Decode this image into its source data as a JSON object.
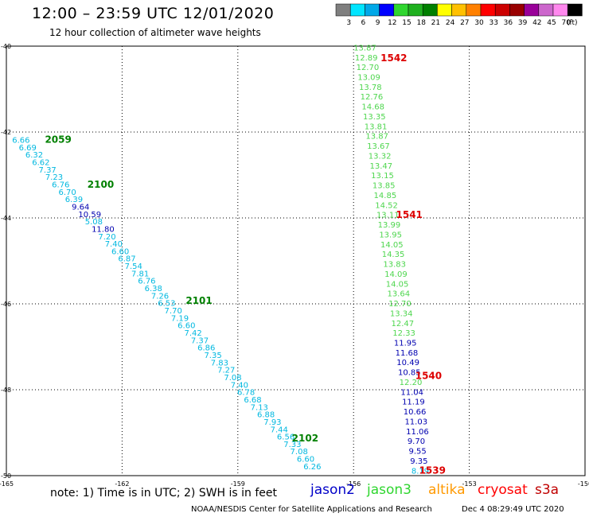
{
  "header": {
    "title": "12:00 – 23:59 UTC 12/01/2020",
    "subtitle": "12 hour collection of altimeter wave heights"
  },
  "legend": {
    "unit": "(ft)",
    "bins": [
      {
        "label": "3",
        "color": "#7f7f7f"
      },
      {
        "label": "6",
        "color": "#00e5ff"
      },
      {
        "label": "9",
        "color": "#00a8e8"
      },
      {
        "label": "12",
        "color": "#0000ff"
      },
      {
        "label": "15",
        "color": "#2fd62f"
      },
      {
        "label": "18",
        "color": "#1fb01f"
      },
      {
        "label": "21",
        "color": "#008000"
      },
      {
        "label": "24",
        "color": "#ffff00"
      },
      {
        "label": "27",
        "color": "#ffc000"
      },
      {
        "label": "30",
        "color": "#ff8000"
      },
      {
        "label": "33",
        "color": "#ff0000"
      },
      {
        "label": "36",
        "color": "#cc0000"
      },
      {
        "label": "39",
        "color": "#990000"
      },
      {
        "label": "42",
        "color": "#990099"
      },
      {
        "label": "45",
        "color": "#cc66cc"
      },
      {
        "label": "70",
        "color": "#ff88ee"
      },
      {
        "label": "",
        "color": "#000000"
      }
    ]
  },
  "axes": {
    "lat_labels": [
      "-40",
      "-42",
      "-44",
      "-46",
      "-48",
      "-50"
    ],
    "lon_labels": [
      "-165",
      "-162",
      "-159",
      "-156",
      "-153",
      "-150"
    ]
  },
  "colors": {
    "jason2": "#0000c8",
    "jason3": "#2fd62f",
    "altika": "#ff9900",
    "cryosat": "#ff0000",
    "s3a": "#c00000",
    "track_labels": "#008000",
    "pass_labels": "#dd0000",
    "cyan": "#00b8e0",
    "cyan2": "#00a0d0",
    "navy": "#0000b0",
    "green": "#4ed64e"
  },
  "track_west": {
    "start_lon": -164.85,
    "start_lat": -42.25,
    "end_lon": -157.3,
    "end_lat": -49.85,
    "values": [
      {
        "v": "6.66",
        "c": "cyan"
      },
      {
        "v": "6.69",
        "c": "cyan"
      },
      {
        "v": "6.32",
        "c": "cyan"
      },
      {
        "v": "6.62",
        "c": "cyan"
      },
      {
        "v": "7.37",
        "c": "cyan"
      },
      {
        "v": "7.23",
        "c": "cyan"
      },
      {
        "v": "6.76",
        "c": "cyan"
      },
      {
        "v": "6.70",
        "c": "cyan"
      },
      {
        "v": "6.39",
        "c": "cyan"
      },
      {
        "v": "9.64",
        "c": "navy"
      },
      {
        "v": "10.59",
        "c": "navy"
      },
      {
        "v": "5.08",
        "c": "cyan"
      },
      {
        "v": "11.80",
        "c": "navy"
      },
      {
        "v": "7.20",
        "c": "cyan"
      },
      {
        "v": "7.40",
        "c": "cyan"
      },
      {
        "v": "6.60",
        "c": "cyan"
      },
      {
        "v": "6.87",
        "c": "cyan"
      },
      {
        "v": "7.54",
        "c": "cyan"
      },
      {
        "v": "7.81",
        "c": "cyan"
      },
      {
        "v": "6.76",
        "c": "cyan"
      },
      {
        "v": "6.38",
        "c": "cyan"
      },
      {
        "v": "7.26",
        "c": "cyan"
      },
      {
        "v": "6.53",
        "c": "cyan"
      },
      {
        "v": "7.70",
        "c": "cyan"
      },
      {
        "v": "7.19",
        "c": "cyan"
      },
      {
        "v": "6.60",
        "c": "cyan"
      },
      {
        "v": "7.42",
        "c": "cyan"
      },
      {
        "v": "7.37",
        "c": "cyan"
      },
      {
        "v": "6.86",
        "c": "cyan"
      },
      {
        "v": "7.35",
        "c": "cyan"
      },
      {
        "v": "7.83",
        "c": "cyan"
      },
      {
        "v": "7.27",
        "c": "cyan"
      },
      {
        "v": "7.08",
        "c": "cyan"
      },
      {
        "v": "7.40",
        "c": "cyan"
      },
      {
        "v": "6.78",
        "c": "cyan"
      },
      {
        "v": "6.68",
        "c": "cyan"
      },
      {
        "v": "7.13",
        "c": "cyan"
      },
      {
        "v": "6.88",
        "c": "cyan"
      },
      {
        "v": "7.93",
        "c": "cyan"
      },
      {
        "v": "7.44",
        "c": "cyan"
      },
      {
        "v": "6.56",
        "c": "cyan"
      },
      {
        "v": "7.33",
        "c": "cyan"
      },
      {
        "v": "7.08",
        "c": "cyan"
      },
      {
        "v": "6.60",
        "c": "cyan"
      },
      {
        "v": "6.26",
        "c": "cyan"
      }
    ],
    "time_labels": [
      {
        "text": "2059",
        "lon": -164.0,
        "lat": -42.25
      },
      {
        "text": "2100",
        "lon": -162.9,
        "lat": -43.3
      },
      {
        "text": "2101",
        "lon": -160.35,
        "lat": -46.0
      },
      {
        "text": "2102",
        "lon": -157.6,
        "lat": -49.2
      }
    ]
  },
  "track_east": {
    "start_lon": -156.0,
    "start_lat": -40.1,
    "end_lon": -154.5,
    "end_lat": -49.95,
    "values": [
      {
        "v": "13.87",
        "c": "green"
      },
      {
        "v": "12.89",
        "c": "green"
      },
      {
        "v": "12.70",
        "c": "green"
      },
      {
        "v": "13.09",
        "c": "green"
      },
      {
        "v": "13.78",
        "c": "green"
      },
      {
        "v": "12.76",
        "c": "green"
      },
      {
        "v": "14.68",
        "c": "green"
      },
      {
        "v": "13.35",
        "c": "green"
      },
      {
        "v": "13.81",
        "c": "green"
      },
      {
        "v": "13.87",
        "c": "green"
      },
      {
        "v": "13.67",
        "c": "green"
      },
      {
        "v": "13.32",
        "c": "green"
      },
      {
        "v": "13.47",
        "c": "green"
      },
      {
        "v": "13.15",
        "c": "green"
      },
      {
        "v": "13.85",
        "c": "green"
      },
      {
        "v": "14.85",
        "c": "green"
      },
      {
        "v": "14.52",
        "c": "green"
      },
      {
        "v": "13.11",
        "c": "green"
      },
      {
        "v": "13.99",
        "c": "green"
      },
      {
        "v": "13.95",
        "c": "green"
      },
      {
        "v": "14.05",
        "c": "green"
      },
      {
        "v": "14.35",
        "c": "green"
      },
      {
        "v": "13.83",
        "c": "green"
      },
      {
        "v": "14.09",
        "c": "green"
      },
      {
        "v": "14.05",
        "c": "green"
      },
      {
        "v": "13.64",
        "c": "green"
      },
      {
        "v": "12.70",
        "c": "green"
      },
      {
        "v": "13.34",
        "c": "green"
      },
      {
        "v": "12.47",
        "c": "green"
      },
      {
        "v": "12.33",
        "c": "green"
      },
      {
        "v": "11.95",
        "c": "navy"
      },
      {
        "v": "11.68",
        "c": "navy"
      },
      {
        "v": "10.49",
        "c": "navy"
      },
      {
        "v": "10.85",
        "c": "navy"
      },
      {
        "v": "12.20",
        "c": "green"
      },
      {
        "v": "11.04",
        "c": "navy"
      },
      {
        "v": "11.19",
        "c": "navy"
      },
      {
        "v": "10.66",
        "c": "navy"
      },
      {
        "v": "11.03",
        "c": "navy"
      },
      {
        "v": "11.06",
        "c": "navy"
      },
      {
        "v": "9.70",
        "c": "navy"
      },
      {
        "v": "9.55",
        "c": "navy"
      },
      {
        "v": "9.35",
        "c": "navy"
      },
      {
        "v": "8.19",
        "c": "cyan"
      }
    ],
    "time_labels": [
      {
        "text": "1542",
        "lon": -155.3,
        "lat": -40.35
      },
      {
        "text": "1541",
        "lon": -154.9,
        "lat": -44.0
      },
      {
        "text": "1540",
        "lon": -154.4,
        "lat": -47.75
      },
      {
        "text": "1539",
        "lon": -154.3,
        "lat": -49.95
      }
    ]
  },
  "footer": {
    "note": "note:  1) Time is in UTC;  2) SWH is in feet",
    "satellites": [
      {
        "name": "jason2",
        "key": "jason2"
      },
      {
        "name": "jason3",
        "key": "jason3"
      },
      {
        "name": "altika",
        "key": "altika"
      },
      {
        "name": "cryosat",
        "key": "cryosat"
      },
      {
        "name": "s3a",
        "key": "s3a"
      }
    ],
    "credit": "NOAA/NESDIS Center for Satellite Applications and Research",
    "timestamp": "Dec  4 08:29:49 UTC 2020"
  }
}
